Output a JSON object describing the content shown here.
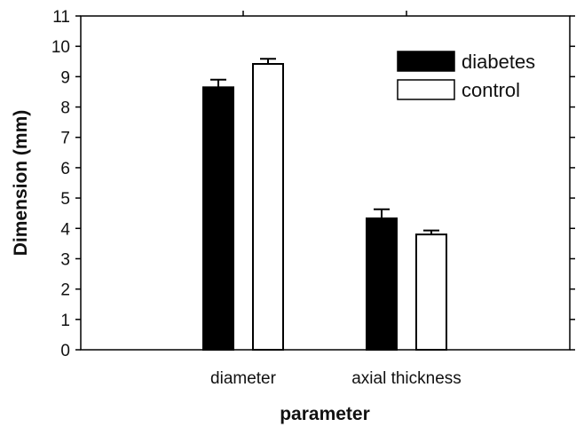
{
  "chart_data": {
    "type": "bar",
    "categories": [
      "diameter",
      "axial thickness"
    ],
    "series": [
      {
        "name": "diabetes",
        "values": [
          8.65,
          4.33
        ],
        "errors": [
          0.25,
          0.3
        ],
        "fill": "#000000"
      },
      {
        "name": "control",
        "values": [
          9.42,
          3.8
        ],
        "errors": [
          0.17,
          0.13
        ],
        "fill": "#ffffff"
      }
    ],
    "title": "",
    "xlabel": "parameter",
    "ylabel": "Dimension (mm)",
    "ylim": [
      0,
      11
    ],
    "yticks": [
      0,
      1,
      2,
      3,
      4,
      5,
      6,
      7,
      8,
      9,
      10,
      11
    ],
    "grid": false,
    "legend_position": "top-right"
  }
}
